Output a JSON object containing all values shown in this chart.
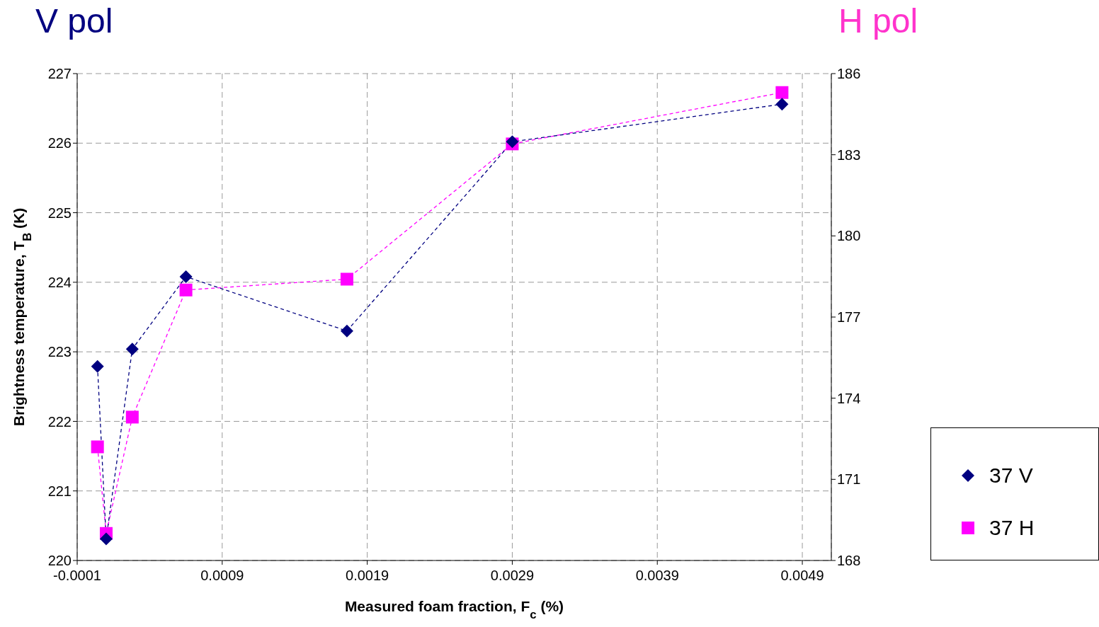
{
  "chart_data": {
    "type": "line",
    "title": "V pol",
    "annotations": [
      "H pol"
    ],
    "xlabel": "Measured foam fraction, F$_{c}$ (%)",
    "ylabel": "Brightness temperature, T$_{B}$ (K)",
    "xlim": [
      -0.0001,
      0.0051
    ],
    "xticks": [
      -0.0001,
      0.0009,
      0.0019,
      0.0029,
      0.0039,
      0.0049
    ],
    "ylim": [
      220,
      227
    ],
    "yticks": [
      220,
      221,
      222,
      223,
      224,
      225,
      226,
      227
    ],
    "y2lim": [
      168,
      186
    ],
    "y2ticks": [
      168,
      171,
      174,
      177,
      180,
      183,
      186
    ],
    "grid": true,
    "legend": "right",
    "line_style": "dashed",
    "series": [
      {
        "name": "37 V",
        "color": "#000080",
        "marker": "diamond",
        "x": [
          4e-05,
          0.0001,
          0.00028,
          0.00065,
          0.00176,
          0.0029,
          0.00476
        ],
        "values": [
          222.79,
          220.31,
          223.04,
          224.08,
          223.3,
          226.02,
          226.56
        ]
      },
      {
        "name": "37 H",
        "color": "#ff00ff",
        "marker": "square",
        "axis": "y2",
        "x": [
          4e-05,
          0.0001,
          0.00028,
          0.00065,
          0.00176,
          0.0029,
          0.00476
        ],
        "values": [
          172.2,
          169.0,
          173.3,
          178.0,
          178.4,
          183.4,
          185.3
        ]
      }
    ]
  }
}
